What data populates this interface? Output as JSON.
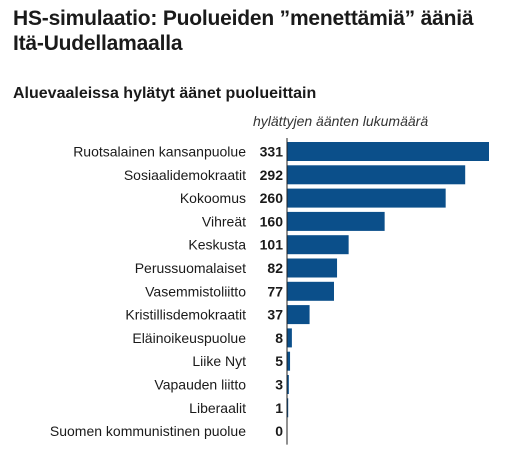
{
  "header": {
    "title": "HS-simulaatio: Puolueiden ”menettämiä” ääniä Itä-Uudellamaalla",
    "subtitle": "Aluevaaleissa hylätyt äänet puolueittain",
    "unit_note": "hylättyjen äänten lukumäärä"
  },
  "chart_data": {
    "type": "bar",
    "orientation": "horizontal",
    "title": "HS-simulaatio: Puolueiden ”menettämiä” ääniä Itä-Uudellamaalla",
    "subtitle": "Aluevaaleissa hylätyt äänet puolueittain",
    "xlabel": "hylättyjen äänten lukumäärä",
    "ylabel": "",
    "categories": [
      "Ruotsalainen kansanpuolue",
      "Sosiaalidemokraatit",
      "Kokoomus",
      "Vihreät",
      "Keskusta",
      "Perussuomalaiset",
      "Vasemmistoliitto",
      "Kristillisdemokraatit",
      "Eläinoikeuspuolue",
      "Liike Nyt",
      "Vapauden liitto",
      "Liberaalit",
      "Suomen kommunistinen puolue"
    ],
    "values": [
      331,
      292,
      260,
      160,
      101,
      82,
      77,
      37,
      8,
      5,
      3,
      1,
      0
    ],
    "xlim": [
      0,
      331
    ],
    "grid": false,
    "legend": "none",
    "bar_color": "#0b4f8a"
  }
}
